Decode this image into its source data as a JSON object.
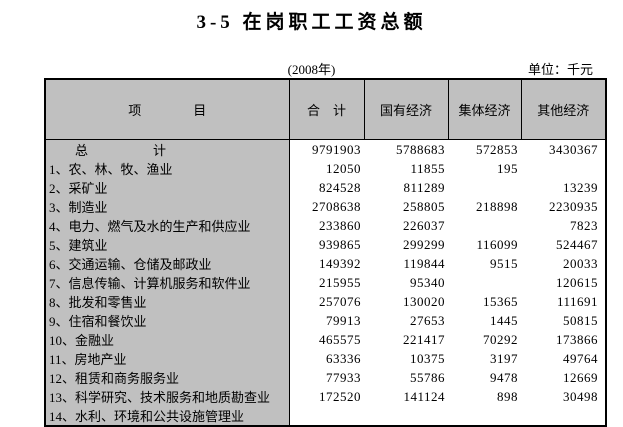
{
  "page": {
    "title": "3-5 在岗职工工资总额",
    "year_note": "(2008年)",
    "unit_note": "单位：千元"
  },
  "table": {
    "headers": {
      "item": "项　　　　目",
      "total": "合　计",
      "state": "国有经济",
      "collective": "集体经济",
      "other": "其他经济"
    },
    "rows": [
      {
        "label": "总　　　　　计",
        "is_total": true,
        "values": [
          "9791903",
          "5788683",
          "572853",
          "3430367"
        ]
      },
      {
        "label": "1、农、林、牧、渔业",
        "is_total": false,
        "values": [
          "12050",
          "11855",
          "195",
          ""
        ]
      },
      {
        "label": "2、采矿业",
        "is_total": false,
        "values": [
          "824528",
          "811289",
          "",
          "13239"
        ]
      },
      {
        "label": "3、制造业",
        "is_total": false,
        "values": [
          "2708638",
          "258805",
          "218898",
          "2230935"
        ]
      },
      {
        "label": "4、电力、燃气及水的生产和供应业",
        "is_total": false,
        "values": [
          "233860",
          "226037",
          "",
          "7823"
        ]
      },
      {
        "label": "5、建筑业",
        "is_total": false,
        "values": [
          "939865",
          "299299",
          "116099",
          "524467"
        ]
      },
      {
        "label": "6、交通运输、仓储及邮政业",
        "is_total": false,
        "values": [
          "149392",
          "119844",
          "9515",
          "20033"
        ]
      },
      {
        "label": "7、信息传输、计算机服务和软件业",
        "is_total": false,
        "values": [
          "215955",
          "95340",
          "",
          "120615"
        ]
      },
      {
        "label": "8、批发和零售业",
        "is_total": false,
        "values": [
          "257076",
          "130020",
          "15365",
          "111691"
        ]
      },
      {
        "label": "9、住宿和餐饮业",
        "is_total": false,
        "values": [
          "79913",
          "27653",
          "1445",
          "50815"
        ]
      },
      {
        "label": "10、金融业",
        "is_total": false,
        "values": [
          "465575",
          "221417",
          "70292",
          "173866"
        ]
      },
      {
        "label": "11、房地产业",
        "is_total": false,
        "values": [
          "63336",
          "10375",
          "3197",
          "49764"
        ]
      },
      {
        "label": "12、租赁和商务服务业",
        "is_total": false,
        "values": [
          "77933",
          "55786",
          "9478",
          "12669"
        ]
      },
      {
        "label": "13、科学研究、技术服务和地质勘查业",
        "is_total": false,
        "values": [
          "172520",
          "141124",
          "898",
          "30498"
        ]
      },
      {
        "label": "14、水利、环境和公共设施管理业",
        "is_total": false,
        "values": [
          "",
          "",
          "",
          ""
        ]
      }
    ],
    "colors": {
      "header_bg": "#c0c0c0",
      "data_bg": "#ffffff",
      "border": "#000000"
    }
  }
}
